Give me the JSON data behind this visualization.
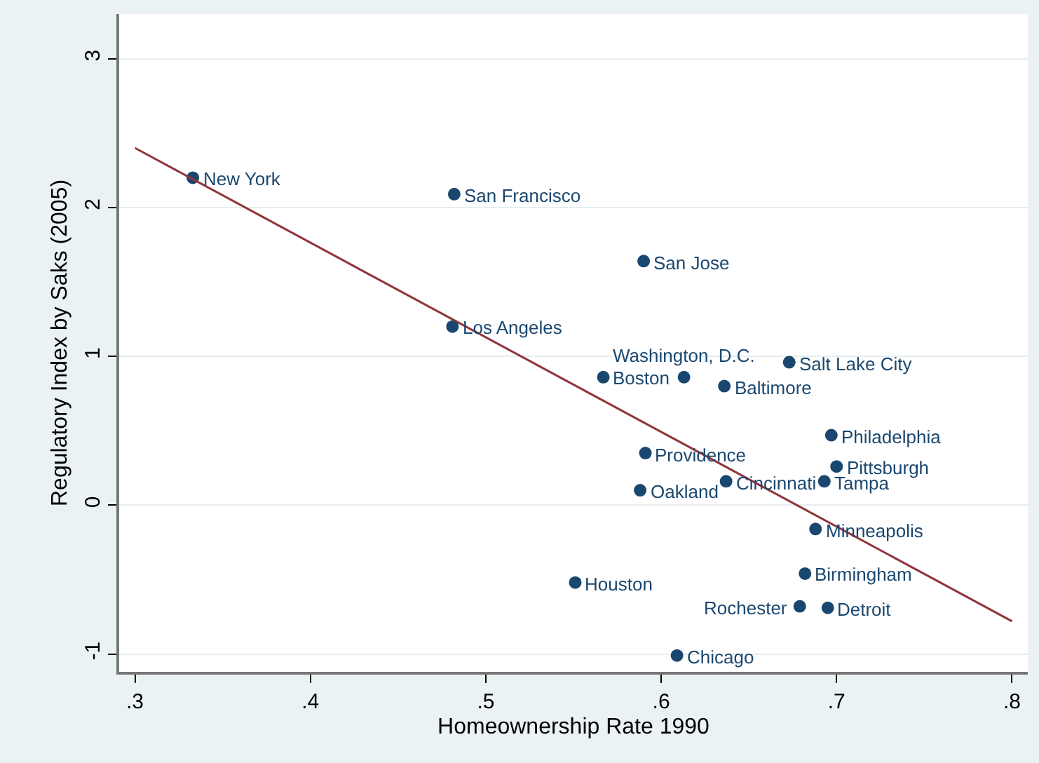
{
  "chart_data": {
    "type": "scatter",
    "xlabel": "Homeownership Rate 1990",
    "ylabel": "Regulatory Index by Saks (2005)",
    "xlim": [
      0.291,
      0.809
    ],
    "ylim": [
      -1.12,
      3.3
    ],
    "xticks": [
      {
        "value": 0.3,
        "label": ".3"
      },
      {
        "value": 0.4,
        "label": ".4"
      },
      {
        "value": 0.5,
        "label": ".5"
      },
      {
        "value": 0.6,
        "label": ".6"
      },
      {
        "value": 0.7,
        "label": ".7"
      },
      {
        "value": 0.8,
        "label": ".8"
      }
    ],
    "yticks": [
      -1,
      0,
      1,
      2,
      3
    ],
    "grid": "y",
    "series": [
      {
        "color": "#1a476f",
        "marker": "circle",
        "x": [
          0.333,
          0.482,
          0.59,
          0.481,
          0.567,
          0.613,
          0.636,
          0.673,
          0.697,
          0.7,
          0.591,
          0.588,
          0.637,
          0.693,
          0.688,
          0.551,
          0.682,
          0.679,
          0.695,
          0.609
        ],
        "values": [
          2.2,
          2.09,
          1.64,
          1.2,
          0.86,
          0.86,
          0.8,
          0.96,
          0.47,
          0.26,
          0.35,
          0.1,
          0.16,
          0.16,
          -0.16,
          -0.52,
          -0.46,
          -0.68,
          -0.69,
          -1.01
        ]
      },
      {
        "type": "line",
        "color": "#90353b",
        "line_style": "solid",
        "x": [
          0.3,
          0.8
        ],
        "values": [
          2.4,
          -0.78
        ]
      }
    ],
    "annotations": [
      {
        "text": "New York",
        "x": 0.333,
        "y": 2.2
      },
      {
        "text": "San Francisco",
        "x": 0.482,
        "y": 2.09
      },
      {
        "text": "San Jose",
        "x": 0.59,
        "y": 1.64
      },
      {
        "text": "Los Angeles",
        "x": 0.481,
        "y": 1.2
      },
      {
        "text": "Boston",
        "x": 0.567,
        "y": 0.86
      },
      {
        "text": "Washington, D.C.",
        "x": 0.613,
        "y": 0.86
      },
      {
        "text": "Baltimore",
        "x": 0.636,
        "y": 0.8
      },
      {
        "text": "Salt Lake City",
        "x": 0.673,
        "y": 0.96
      },
      {
        "text": "Philadelphia",
        "x": 0.697,
        "y": 0.47
      },
      {
        "text": "Pittsburgh",
        "x": 0.7,
        "y": 0.26
      },
      {
        "text": "Providence",
        "x": 0.591,
        "y": 0.35
      },
      {
        "text": "Oakland",
        "x": 0.588,
        "y": 0.1
      },
      {
        "text": "Cincinnati",
        "x": 0.637,
        "y": 0.16
      },
      {
        "text": "Tampa",
        "x": 0.693,
        "y": 0.16
      },
      {
        "text": "Minneapolis",
        "x": 0.688,
        "y": -0.16
      },
      {
        "text": "Houston",
        "x": 0.551,
        "y": -0.52
      },
      {
        "text": "Birmingham",
        "x": 0.682,
        "y": -0.46
      },
      {
        "text": "Rochester",
        "x": 0.679,
        "y": -0.68
      },
      {
        "text": "Detroit",
        "x": 0.695,
        "y": -0.69
      },
      {
        "text": "Chicago",
        "x": 0.609,
        "y": -1.01
      }
    ]
  }
}
